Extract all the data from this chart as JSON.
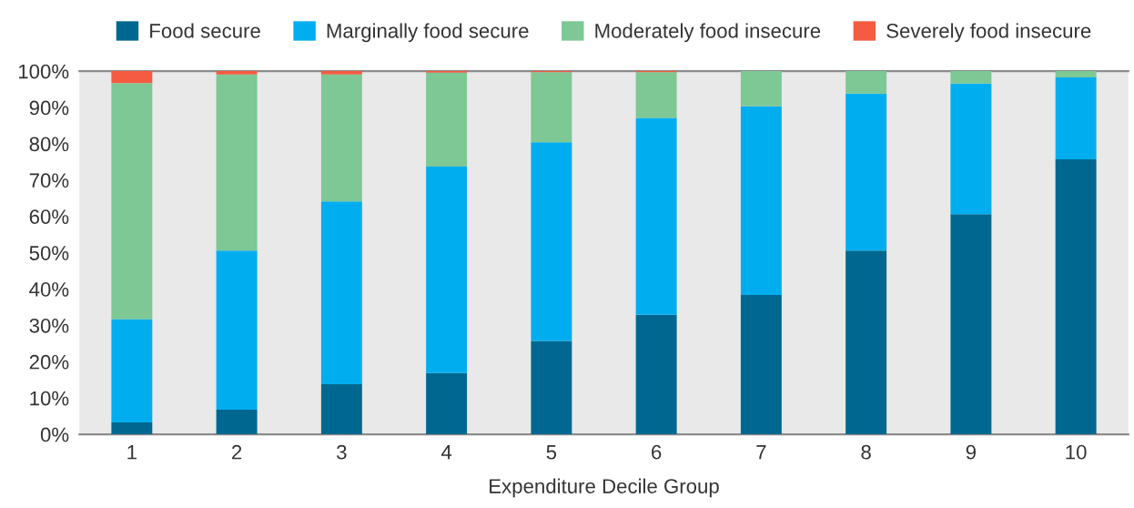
{
  "chart_data": {
    "type": "bar",
    "stacked": true,
    "xlabel": "Expenditure Decile Group",
    "categories": [
      "1",
      "2",
      "3",
      "4",
      "5",
      "6",
      "7",
      "8",
      "9",
      "10"
    ],
    "series": [
      {
        "name": "Food secure",
        "color": "#006890",
        "values": [
          3.3,
          6.8,
          13.8,
          16.9,
          25.7,
          32.9,
          38.4,
          50.6,
          60.6,
          75.7
        ]
      },
      {
        "name": "Marginally food secure",
        "color": "#00aeef",
        "values": [
          28.4,
          43.8,
          50.3,
          56.8,
          54.7,
          54.2,
          51.9,
          43.2,
          36.0,
          22.6
        ]
      },
      {
        "name": "Moderately food insecure",
        "color": "#7dc895",
        "values": [
          65.0,
          48.5,
          35.0,
          25.9,
          19.3,
          12.6,
          9.7,
          6.2,
          3.4,
          1.7
        ]
      },
      {
        "name": "Severely food insecure",
        "color": "#f45b40",
        "values": [
          3.3,
          0.9,
          0.9,
          0.4,
          0.3,
          0.3,
          0,
          0,
          0,
          0
        ]
      }
    ],
    "ylim": [
      0,
      100
    ],
    "yticks": [
      {
        "value": 0,
        "label": "0%"
      },
      {
        "value": 10,
        "label": "10%"
      },
      {
        "value": 20,
        "label": "20%"
      },
      {
        "value": 30,
        "label": "30%"
      },
      {
        "value": 40,
        "label": "40%"
      },
      {
        "value": 50,
        "label": "50%"
      },
      {
        "value": 60,
        "label": "60%"
      },
      {
        "value": 70,
        "label": "70%"
      },
      {
        "value": 80,
        "label": "80%"
      },
      {
        "value": 90,
        "label": "90%"
      },
      {
        "value": 100,
        "label": "100%"
      }
    ],
    "grid": false,
    "legend": "top"
  }
}
